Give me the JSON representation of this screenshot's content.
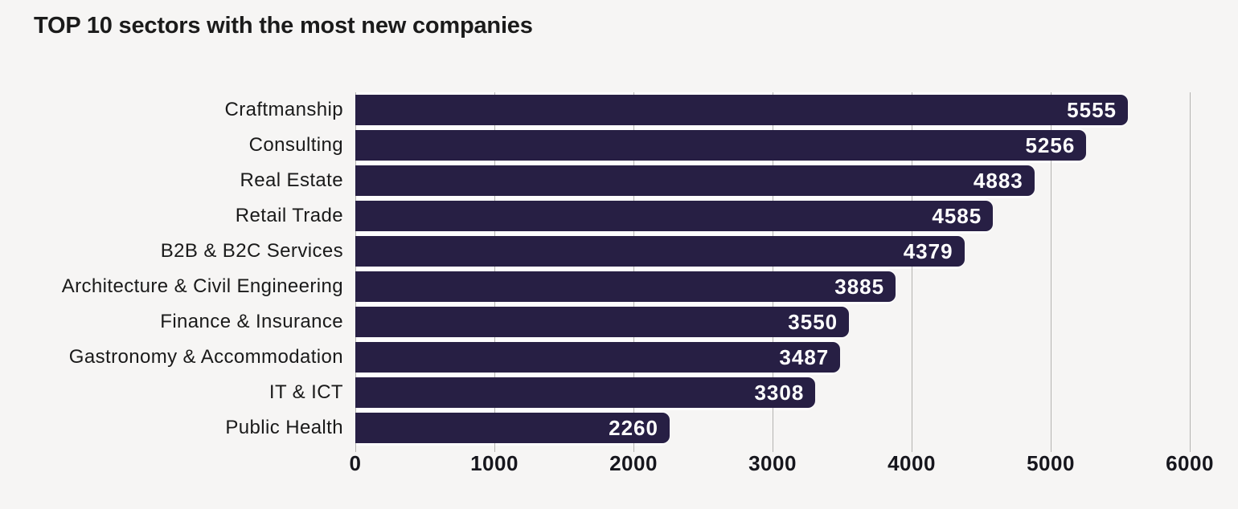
{
  "title": "TOP 10 sectors with the most new companies",
  "chart_data": {
    "type": "bar",
    "orientation": "horizontal",
    "title": "TOP 10 sectors with the most new companies",
    "categories": [
      "Craftmanship",
      "Consulting",
      "Real Estate",
      "Retail Trade",
      "B2B & B2C Services",
      "Architecture & Civil Engineering",
      "Finance & Insurance",
      "Gastronomy & Accommodation",
      "IT & ICT",
      "Public Health"
    ],
    "values": [
      5555,
      5256,
      4883,
      4585,
      4379,
      3885,
      3550,
      3487,
      3308,
      2260
    ],
    "value_labels_shown": true,
    "xlabel": "",
    "ylabel": "",
    "xlim": [
      0,
      6000
    ],
    "xticks": [
      0,
      1000,
      2000,
      3000,
      4000,
      5000,
      6000
    ],
    "grid": "vertical",
    "legend": "none",
    "colors": {
      "bar": "#271f44",
      "value_label": "#ffffff",
      "background": "#f6f5f4",
      "gridline": "#b4b3b1",
      "text": "#1a1a1a"
    }
  }
}
